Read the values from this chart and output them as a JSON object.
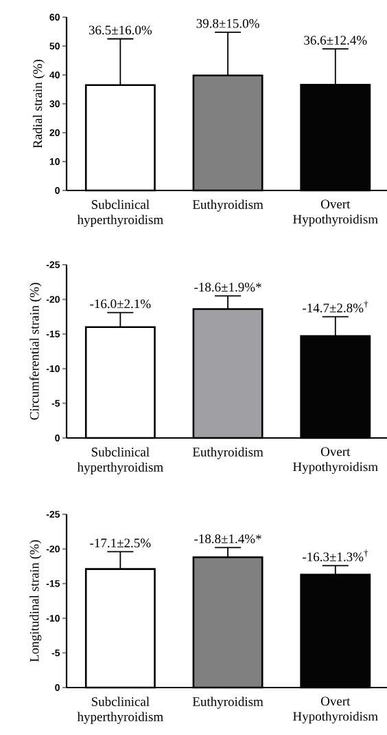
{
  "chart_data": [
    {
      "type": "bar",
      "ylabel": "Radial strain (%)",
      "categories": [
        "Subclinical hyperthyroidism",
        "Euthyroidism",
        "Overt Hypothyroidism"
      ],
      "values": [
        36.5,
        39.8,
        36.6
      ],
      "colors": [
        "#ffffff",
        "#808080",
        "#050505"
      ],
      "errors": [
        [
          36.5,
          52.5
        ],
        [
          39.8,
          54.8
        ],
        [
          36.6,
          49.0
        ]
      ],
      "ylim": [
        0,
        60
      ],
      "yticks": [
        0,
        10,
        20,
        30,
        40,
        50,
        60
      ],
      "annotations": [
        {
          "text": "36.5±16.0%",
          "x": "Subclinical hyperthyroidism",
          "y": 52.5
        },
        {
          "text": "39.8±15.0%",
          "x": "Euthyroidism",
          "y": 54.8
        },
        {
          "text": "36.6±12.4%",
          "x": "Overt Hypothyroidism",
          "y": 49.0
        }
      ]
    },
    {
      "type": "bar",
      "ylabel": "Circumferential strain (%)",
      "categories": [
        "Subclinical hyperthyroidism",
        "Euthyroidism",
        "Overt Hypothyroidism"
      ],
      "values": [
        -16.0,
        -18.6,
        -14.7
      ],
      "colors": [
        "#ffffff",
        "#a0a0a4",
        "#050505"
      ],
      "errors": [
        [
          -18.1,
          -16.0
        ],
        [
          -20.5,
          -18.6
        ],
        [
          -17.5,
          -14.7
        ]
      ],
      "ylim": [
        0,
        -25
      ],
      "yticks": [
        0,
        -5,
        -10,
        -15,
        -20,
        -25
      ],
      "annotations": [
        {
          "text": "-16.0±2.1%",
          "x": "Subclinical hyperthyroidism",
          "y": -18.1
        },
        {
          "text": "-18.6±1.9%*",
          "x": "Euthyroidism",
          "y": -20.5
        },
        {
          "text": "-14.7±2.8%$^{†}$",
          "x": "Overt Hypothyroidism",
          "y": -17.5
        }
      ]
    },
    {
      "type": "bar",
      "ylabel": "Longitudinal strain (%)",
      "categories": [
        "Subclinical hyperthyroidism",
        "Euthyroidism",
        "Overt Hypothyroidism"
      ],
      "values": [
        -17.1,
        -18.8,
        -16.3
      ],
      "colors": [
        "#ffffff",
        "#808080",
        "#050505"
      ],
      "errors": [
        [
          -19.6,
          -17.1
        ],
        [
          -20.2,
          -18.8
        ],
        [
          -17.6,
          -16.3
        ]
      ],
      "ylim": [
        0,
        -25
      ],
      "yticks": [
        0,
        -5,
        -10,
        -15,
        -20,
        -25
      ],
      "annotations": [
        {
          "text": "-17.1±2.5%",
          "x": "Subclinical hyperthyroidism",
          "y": -19.6
        },
        {
          "text": "-18.8±1.4%*",
          "x": "Euthyroidism",
          "y": -20.2
        },
        {
          "text": "-16.3±1.3%$^{†}$",
          "x": "Overt Hypothyroidism",
          "y": -17.6
        }
      ]
    }
  ]
}
